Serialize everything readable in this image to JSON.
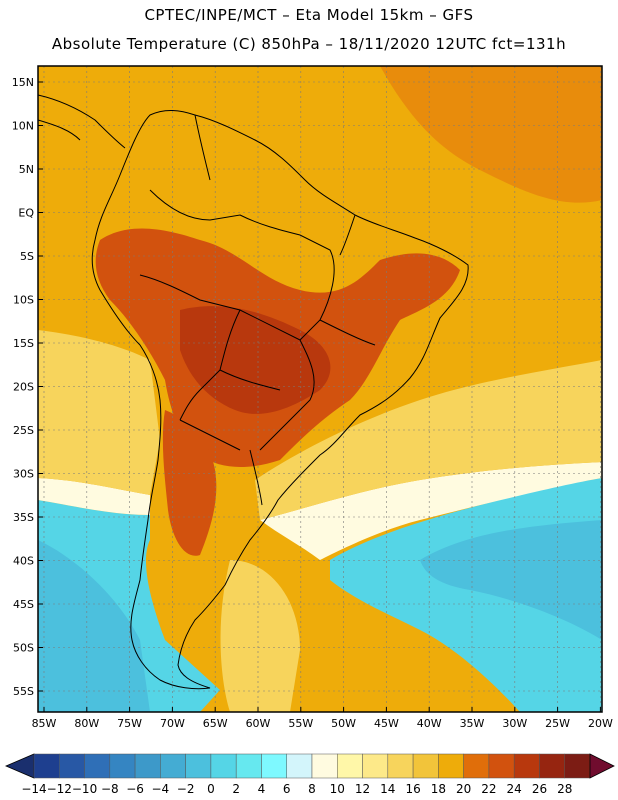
{
  "header": {
    "line1": "CPTEC/INPE/MCT –   Eta Model 15km – GFS",
    "line2": "Absolute Temperature (C) 850hPa – 18/11/2020 12UTC fct=131h"
  },
  "axes": {
    "lat_labels": [
      "15N",
      "10N",
      "5N",
      "EQ",
      "5S",
      "10S",
      "15S",
      "20S",
      "25S",
      "30S",
      "35S",
      "40S",
      "45S",
      "50S",
      "55S"
    ],
    "lon_labels": [
      "85W",
      "80W",
      "75W",
      "70W",
      "65W",
      "60W",
      "55W",
      "50W",
      "45W",
      "40W",
      "35W",
      "30W",
      "25W",
      "20W"
    ]
  },
  "colorbar": {
    "labels": [
      "-14",
      "-12",
      "-10",
      "-8",
      "-6",
      "-4",
      "-2",
      "0",
      "2",
      "4",
      "6",
      "8",
      "10",
      "12",
      "14",
      "16",
      "18",
      "20",
      "22",
      "24",
      "26",
      "28"
    ],
    "colors": [
      "#1e3f8f",
      "#2858a5",
      "#2f6fb7",
      "#3585c2",
      "#3d99c9",
      "#44acd3",
      "#4cc0dd",
      "#55d5e6",
      "#66e8ef",
      "#7ef9ff",
      "#d3f5fb",
      "#fffbe0",
      "#fff7a8",
      "#fde989",
      "#f7d45c",
      "#f2c43a",
      "#eeac0a",
      "#e06e0a",
      "#d2520e",
      "#b8380d",
      "#962510",
      "#7c1c14"
    ],
    "under_color": "#1a2f6e",
    "over_color": "#700c2e"
  },
  "field": {
    "background": "#eeac0a",
    "regions": [
      {
        "name": "north-atlantic-warm",
        "color": "#e88c0c"
      },
      {
        "name": "amazon-hot",
        "color": "#d2520e"
      },
      {
        "name": "central-hot",
        "color": "#b8380d"
      },
      {
        "name": "argentina-hot",
        "color": "#d2520e"
      },
      {
        "name": "sea-cool-yellow",
        "color": "#f7d45c"
      },
      {
        "name": "cold-ocean",
        "color": "#55d5e6"
      },
      {
        "name": "cold-core",
        "color": "#4cc0dd"
      },
      {
        "name": "pale-band",
        "color": "#fffbe0"
      }
    ]
  }
}
